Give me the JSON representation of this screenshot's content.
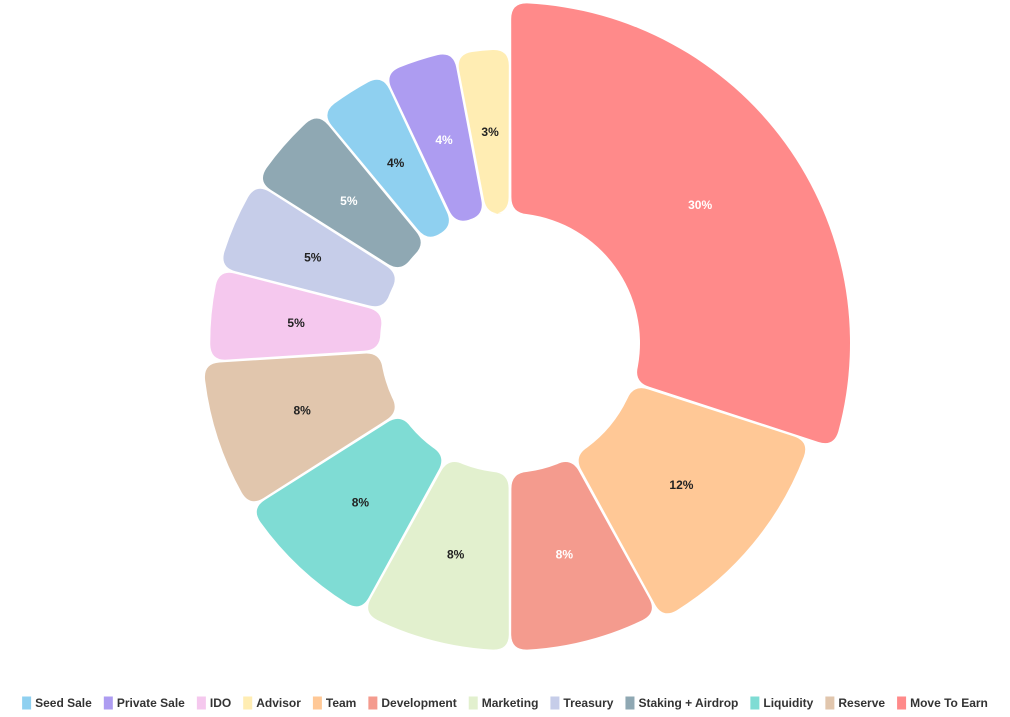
{
  "chart_data": {
    "type": "pie",
    "donut": true,
    "legend_position": "bottom",
    "slices": [
      {
        "label": "Move To Earn",
        "value": 30,
        "value_label": "30%",
        "color": "#ff8a8a",
        "label_color": "#ffffff"
      },
      {
        "label": "Team",
        "value": 12,
        "value_label": "12%",
        "color": "#ffc896",
        "label_color": "#222222"
      },
      {
        "label": "Development",
        "value": 8,
        "value_label": "8%",
        "color": "#f49b8e",
        "label_color": "#ffffff"
      },
      {
        "label": "Marketing",
        "value": 8,
        "value_label": "8%",
        "color": "#e2f0ce",
        "label_color": "#222222"
      },
      {
        "label": "Liquidity",
        "value": 8,
        "value_label": "8%",
        "color": "#7fdcd4",
        "label_color": "#222222"
      },
      {
        "label": "Reserve",
        "value": 8,
        "value_label": "8%",
        "color": "#e1c6ad",
        "label_color": "#222222"
      },
      {
        "label": "IDO",
        "value": 5,
        "value_label": "5%",
        "color": "#f5c8ee",
        "label_color": "#222222"
      },
      {
        "label": "Treasury",
        "value": 5,
        "value_label": "5%",
        "color": "#c6cde9",
        "label_color": "#222222"
      },
      {
        "label": "Staking + Airdrop",
        "value": 5,
        "value_label": "5%",
        "color": "#8fa8b3",
        "label_color": "#ffffff"
      },
      {
        "label": "Seed Sale",
        "value": 4,
        "value_label": "4%",
        "color": "#8fd0f0",
        "label_color": "#222222"
      },
      {
        "label": "Private Sale",
        "value": 4,
        "value_label": "4%",
        "color": "#ad9cf1",
        "label_color": "#ffffff"
      },
      {
        "label": "Advisor",
        "value": 3,
        "value_label": "3%",
        "color": "#ffedb3",
        "label_color": "#222222"
      }
    ],
    "legend": [
      "Seed Sale",
      "Private Sale",
      "IDO",
      "Advisor",
      "Team",
      "Development",
      "Marketing",
      "Treasury",
      "Staking + Airdrop",
      "Liquidity",
      "Reserve",
      "Move To Earn"
    ]
  }
}
